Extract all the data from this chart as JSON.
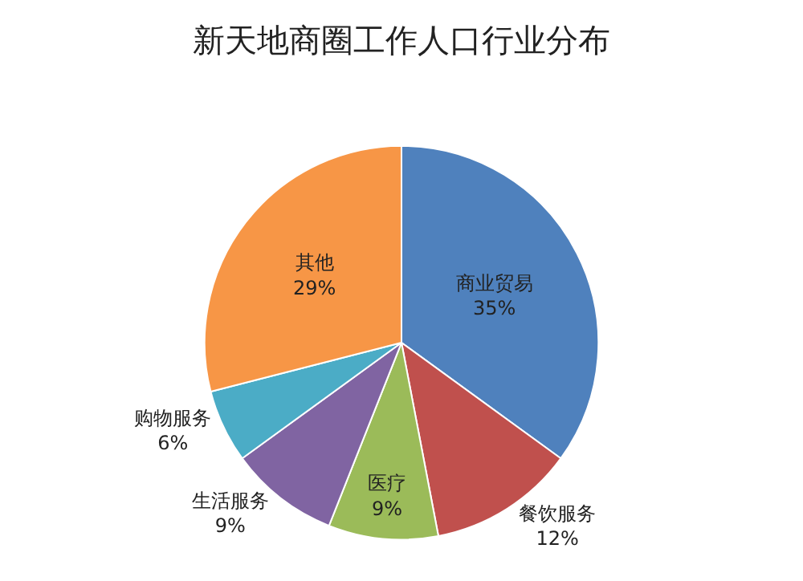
{
  "chart_data": {
    "type": "pie",
    "title": "新天地商圈工作人口行业分布",
    "categories": [
      "商业贸易",
      "餐饮服务",
      "医疗",
      "生活服务",
      "购物服务",
      "其他"
    ],
    "values": [
      35,
      12,
      9,
      9,
      6,
      29
    ],
    "value_labels": [
      "35%",
      "12%",
      "9%",
      "9%",
      "6%",
      "29%"
    ],
    "colors": [
      "#4f81bd",
      "#c0504d",
      "#9bbb59",
      "#8064a2",
      "#4bacc6",
      "#f79646"
    ],
    "legend": false
  }
}
